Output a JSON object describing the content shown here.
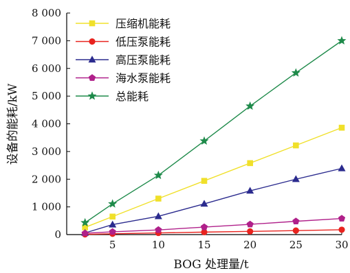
{
  "chart_data": {
    "type": "line",
    "title": "",
    "xlabel": "BOG 处理量/t",
    "ylabel": "设备的能耗/kW",
    "x": [
      2,
      5,
      10,
      15,
      20,
      25,
      30
    ],
    "xlim": [
      0,
      30
    ],
    "ylim": [
      0,
      8000
    ],
    "xticks": [
      5,
      10,
      15,
      20,
      25,
      30
    ],
    "xtick_labels": [
      "5",
      "10",
      "15",
      "20",
      "25",
      "30"
    ],
    "yticks": [
      0,
      1000,
      2000,
      3000,
      4000,
      5000,
      6000,
      7000,
      8000
    ],
    "ytick_labels": [
      "0",
      "1 000",
      "2 000",
      "3 000",
      "4 000",
      "5 000",
      "6 000",
      "7 000",
      "8 000"
    ],
    "grid": false,
    "legend_position": "top-left",
    "series": [
      {
        "name": "压缩机能耗",
        "color": "#f0e02a",
        "marker": "square",
        "values": [
          260,
          650,
          1300,
          1940,
          2580,
          3220,
          3860
        ]
      },
      {
        "name": "低压泵能耗",
        "color": "#e8231e",
        "marker": "circle",
        "values": [
          10,
          30,
          60,
          90,
          115,
          145,
          175
        ]
      },
      {
        "name": "高压泵能耗",
        "color": "#2b2b8e",
        "marker": "triangle",
        "values": [
          60,
          360,
          660,
          1110,
          1580,
          2000,
          2390
        ]
      },
      {
        "name": "海水泵能耗",
        "color": "#b0208a",
        "marker": "pentagon",
        "values": [
          50,
          100,
          170,
          270,
          370,
          480,
          580
        ]
      },
      {
        "name": "总能耗",
        "color": "#1e8a4a",
        "marker": "star",
        "values": [
          430,
          1110,
          2140,
          3380,
          4640,
          5840,
          7000
        ]
      }
    ]
  }
}
